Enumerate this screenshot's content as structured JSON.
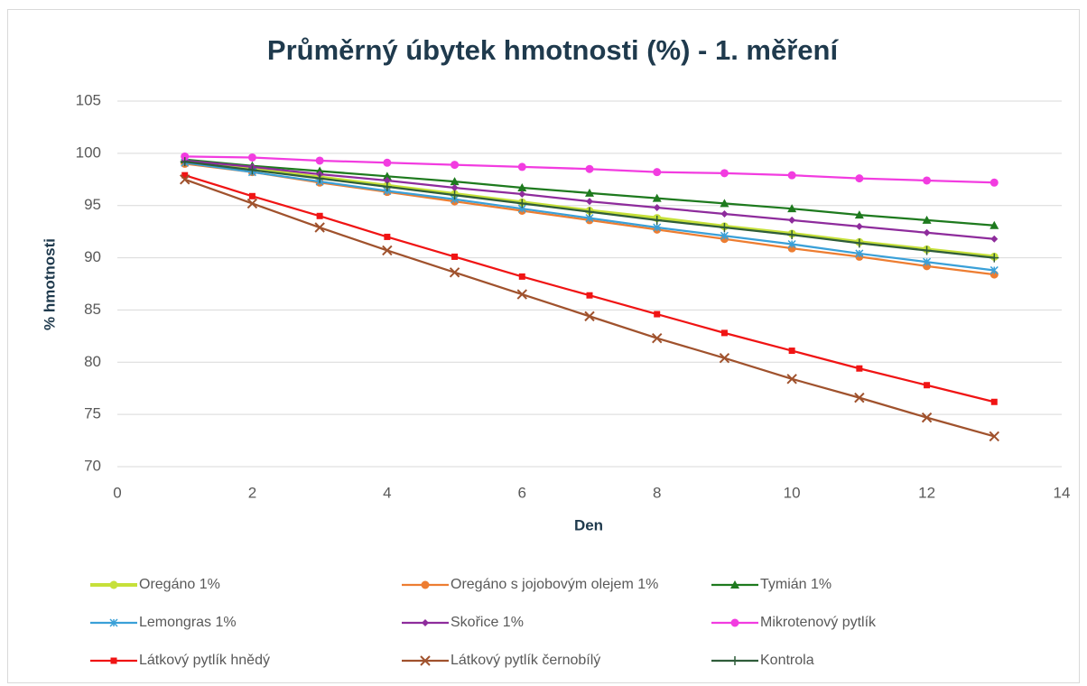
{
  "chart_data": {
    "type": "line",
    "title": "Průměrný úbytek hmotnosti (%) - 1. měření",
    "x_label": "Den",
    "y_label": "% hmotnosti",
    "x": [
      1,
      2,
      3,
      4,
      5,
      6,
      7,
      8,
      9,
      10,
      11,
      12,
      13
    ],
    "xlim": [
      0,
      14
    ],
    "xticks": [
      0,
      2,
      4,
      6,
      8,
      10,
      12,
      14
    ],
    "ylim": [
      70,
      105
    ],
    "yticks": [
      70,
      75,
      80,
      85,
      90,
      95,
      100,
      105
    ],
    "grid": true,
    "legend": "bottom",
    "series": [
      {
        "name": "Oregáno 1%",
        "color": "#c6e03a",
        "marker": "circle",
        "values": [
          99.2,
          98.5,
          97.7,
          96.9,
          96.1,
          95.3,
          94.5,
          93.8,
          93.0,
          92.3,
          91.5,
          90.8,
          90.1
        ]
      },
      {
        "name": "Oregáno s jojobovým olejem 1%",
        "color": "#ed7d31",
        "marker": "circle",
        "values": [
          99.0,
          98.2,
          97.2,
          96.3,
          95.4,
          94.5,
          93.6,
          92.7,
          91.8,
          90.9,
          90.1,
          89.2,
          88.4
        ]
      },
      {
        "name": "Tymián 1%",
        "color": "#1e7a1e",
        "marker": "triangle",
        "values": [
          99.4,
          98.8,
          98.3,
          97.8,
          97.3,
          96.7,
          96.2,
          95.7,
          95.2,
          94.7,
          94.1,
          93.6,
          93.1
        ]
      },
      {
        "name": "Lemongras 1%",
        "color": "#3aa0d8",
        "marker": "star",
        "values": [
          99.1,
          98.2,
          97.3,
          96.4,
          95.6,
          94.7,
          93.8,
          92.9,
          92.1,
          91.3,
          90.4,
          89.6,
          88.8
        ]
      },
      {
        "name": "Skořice 1%",
        "color": "#8e2c9c",
        "marker": "diamond",
        "values": [
          99.3,
          98.7,
          98.0,
          97.4,
          96.7,
          96.1,
          95.4,
          94.8,
          94.2,
          93.6,
          93.0,
          92.4,
          91.8
        ]
      },
      {
        "name": "Mikrotenový pytlík",
        "color": "#f23ce0",
        "marker": "circle",
        "values": [
          99.7,
          99.6,
          99.3,
          99.1,
          98.9,
          98.7,
          98.5,
          98.2,
          98.1,
          97.9,
          97.6,
          97.4,
          97.2
        ]
      },
      {
        "name": "Látkový pytlík hnědý",
        "color": "#f01414",
        "marker": "square",
        "values": [
          97.9,
          95.9,
          94.0,
          92.0,
          90.1,
          88.2,
          86.4,
          84.6,
          82.8,
          81.1,
          79.4,
          77.8,
          76.2
        ]
      },
      {
        "name": "Látkový pytlík černobílý",
        "color": "#a0522d",
        "marker": "x",
        "values": [
          97.5,
          95.2,
          92.9,
          90.7,
          88.6,
          86.5,
          84.4,
          82.3,
          80.4,
          78.4,
          76.6,
          74.7,
          72.9
        ]
      },
      {
        "name": "Kontrola",
        "color": "#2f5d3a",
        "marker": "plus",
        "values": [
          99.2,
          98.4,
          97.6,
          96.8,
          96.0,
          95.2,
          94.4,
          93.6,
          92.9,
          92.2,
          91.4,
          90.7,
          90.0
        ]
      }
    ]
  }
}
